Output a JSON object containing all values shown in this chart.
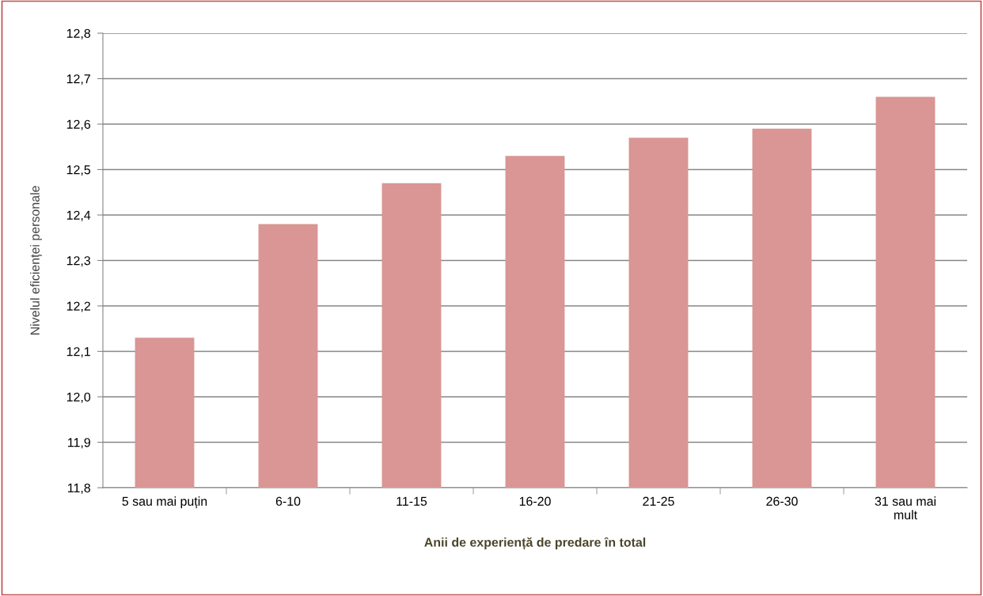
{
  "chart_data": {
    "type": "bar",
    "xlabel": "Anii de experiență de predare în total",
    "ylabel": "Nivelul eficienței personale",
    "categories": [
      "5 sau mai puțin",
      "6-10",
      "11-15",
      "16-20",
      "21-25",
      "26-30",
      "31 sau mai\nmult"
    ],
    "values": [
      12.13,
      12.38,
      12.47,
      12.53,
      12.57,
      12.59,
      12.66
    ],
    "color": "#d99694",
    "ylim": [
      11.8,
      12.8
    ],
    "yticks": [
      {
        "value": 11.8,
        "label": "11,8"
      },
      {
        "value": 11.9,
        "label": "11,9"
      },
      {
        "value": 12.0,
        "label": "12,0"
      },
      {
        "value": 12.1,
        "label": "12,1"
      },
      {
        "value": 12.2,
        "label": "12,2"
      },
      {
        "value": 12.3,
        "label": "12,3"
      },
      {
        "value": 12.4,
        "label": "12,4"
      },
      {
        "value": 12.5,
        "label": "12,5"
      },
      {
        "value": 12.6,
        "label": "12,6"
      },
      {
        "value": 12.7,
        "label": "12,7"
      },
      {
        "value": 12.8,
        "label": "12,8"
      }
    ],
    "grid": "y",
    "legend": false
  }
}
